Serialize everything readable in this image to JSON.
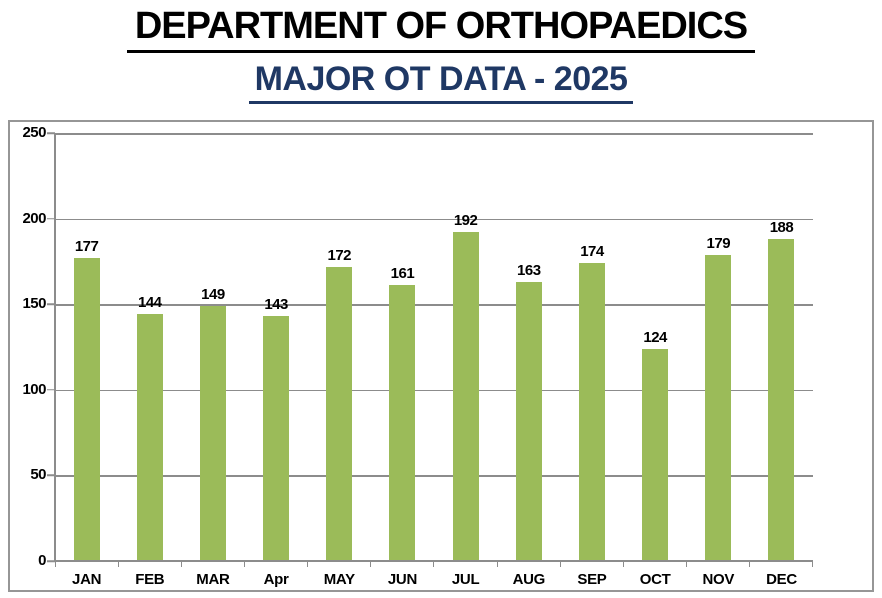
{
  "header": {
    "title": "DEPARTMENT OF ORTHOPAEDICS",
    "subtitle": "MAJOR OT DATA - 2025"
  },
  "chart_data": {
    "type": "bar",
    "title": "MAJOR OT DATA - 2025",
    "categories": [
      "JAN",
      "FEB",
      "MAR",
      "Apr",
      "MAY",
      "JUN",
      "JUL",
      "AUG",
      "SEP",
      "OCT",
      "NOV",
      "DEC"
    ],
    "values": [
      177,
      144,
      149,
      143,
      172,
      161,
      192,
      163,
      174,
      124,
      179,
      188
    ],
    "xlabel": "",
    "ylabel": "",
    "ylim": [
      0,
      250
    ],
    "yticks": [
      0,
      50,
      100,
      150,
      200,
      250
    ],
    "grid": "horizontal",
    "legend_position": "none",
    "data_labels": true,
    "bar_color": "#9BBB59"
  },
  "style": {
    "bar_color": "#9BBB59",
    "gridline_color": "#8C8C8C",
    "axis_color": "#8C8C8C",
    "frame_border_color": "#969696",
    "title_color": "#000000",
    "subtitle_color": "#1F3864",
    "label_color": "#000000"
  }
}
